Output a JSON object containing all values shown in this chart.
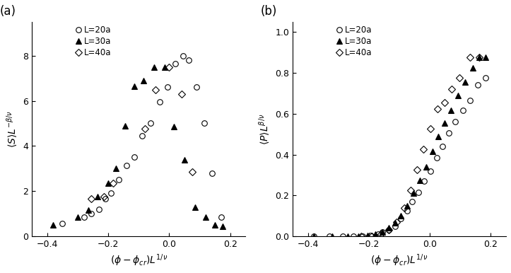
{
  "panel_a": {
    "title": "(a)",
    "xlabel": "$(\\phi-\\phi_{cr})L^{1/\\nu}$",
    "ylabel": "$\\langle S\\rangle L^{-\\beta/\\nu}$",
    "xlim": [
      -0.45,
      0.25
    ],
    "ylim": [
      0,
      9.5
    ],
    "xticks": [
      -0.4,
      -0.2,
      0.0,
      0.2
    ],
    "yticks": [
      0,
      2,
      4,
      6,
      8
    ],
    "L20a_x": [
      -0.35,
      -0.28,
      -0.255,
      -0.23,
      -0.21,
      -0.19,
      -0.165,
      -0.14,
      -0.115,
      -0.09,
      -0.06,
      -0.03,
      -0.005,
      0.02,
      0.045,
      0.065,
      0.09,
      0.115,
      0.14,
      0.17
    ],
    "L20a_y": [
      0.55,
      0.85,
      1.0,
      1.2,
      1.65,
      1.9,
      2.5,
      3.15,
      3.5,
      4.45,
      5.0,
      5.95,
      6.6,
      7.65,
      8.0,
      7.8,
      6.6,
      5.0,
      2.8,
      0.85
    ],
    "L30a_x": [
      -0.38,
      -0.3,
      -0.265,
      -0.235,
      -0.2,
      -0.175,
      -0.145,
      -0.115,
      -0.085,
      -0.05,
      -0.015,
      0.015,
      0.05,
      0.085,
      0.12,
      0.15,
      0.175
    ],
    "L30a_y": [
      0.5,
      0.85,
      1.15,
      1.75,
      2.35,
      3.0,
      4.9,
      6.65,
      6.9,
      7.5,
      7.5,
      4.85,
      3.4,
      1.3,
      0.85,
      0.5,
      0.45
    ],
    "L40a_x": [
      -0.255,
      -0.215,
      -0.185,
      -0.08,
      -0.045,
      0.0,
      0.04,
      0.075
    ],
    "L40a_y": [
      1.65,
      1.75,
      2.35,
      4.75,
      6.5,
      7.5,
      6.3,
      2.85
    ]
  },
  "panel_b": {
    "title": "(b)",
    "xlabel": "$(\\phi-\\phi_{cr})L^{1/\\nu}$",
    "ylabel": "$\\langle P\\rangle L^{\\beta/\\nu}$",
    "xlim": [
      -0.45,
      0.25
    ],
    "ylim": [
      0,
      1.05
    ],
    "xticks": [
      -0.4,
      -0.2,
      0.0,
      0.2
    ],
    "yticks": [
      0,
      0.2,
      0.4,
      0.6,
      0.8,
      1.0
    ],
    "L20a_x": [
      -0.38,
      -0.33,
      -0.285,
      -0.25,
      -0.22,
      -0.195,
      -0.17,
      -0.155,
      -0.135,
      -0.115,
      -0.095,
      -0.075,
      -0.058,
      -0.038,
      -0.018,
      0.002,
      0.022,
      0.042,
      0.062,
      0.082,
      0.108,
      0.132,
      0.158,
      0.182
    ],
    "L20a_y": [
      0.0,
      0.0,
      0.0,
      0.0,
      0.0,
      0.005,
      0.01,
      0.02,
      0.03,
      0.05,
      0.085,
      0.125,
      0.17,
      0.215,
      0.27,
      0.32,
      0.385,
      0.44,
      0.505,
      0.56,
      0.615,
      0.665,
      0.74,
      0.775
    ],
    "L30a_x": [
      -0.38,
      -0.32,
      -0.27,
      -0.235,
      -0.205,
      -0.18,
      -0.155,
      -0.135,
      -0.115,
      -0.095,
      -0.075,
      -0.055,
      -0.032,
      -0.012,
      0.008,
      0.028,
      0.048,
      0.068,
      0.092,
      0.115,
      0.14,
      0.162,
      0.183
    ],
    "L30a_y": [
      0.0,
      0.0,
      0.0,
      0.0,
      0.005,
      0.01,
      0.02,
      0.04,
      0.065,
      0.1,
      0.15,
      0.21,
      0.275,
      0.34,
      0.415,
      0.49,
      0.555,
      0.615,
      0.69,
      0.755,
      0.825,
      0.875,
      0.875
    ],
    "L40a_x": [
      -0.225,
      -0.19,
      -0.16,
      -0.135,
      -0.11,
      -0.085,
      -0.062,
      -0.042,
      -0.022,
      0.002,
      0.025,
      0.048,
      0.072,
      0.098,
      0.132,
      0.162
    ],
    "L40a_y": [
      0.0,
      0.0,
      0.01,
      0.03,
      0.07,
      0.14,
      0.225,
      0.325,
      0.425,
      0.525,
      0.625,
      0.655,
      0.72,
      0.775,
      0.875,
      0.875
    ]
  },
  "legend_labels": [
    "L=20a",
    "L=30a",
    "L=40a"
  ],
  "bg_color": "#ffffff"
}
